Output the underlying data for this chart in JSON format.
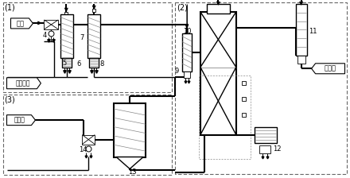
{
  "bg_color": "#ffffff",
  "line_color": "#000000",
  "panel1_label": "(1)",
  "panel2_label": "(2)",
  "panel3_label": "(3)",
  "label_weigi": "尾气",
  "label_youji": "有机溶剂",
  "label_fuchanpin": "副产品",
  "label_fhuaqi": "氟化氢",
  "num4": "4",
  "num5": "5",
  "num6": "6",
  "num7": "7",
  "num8": "8",
  "num9": "9",
  "num10": "10",
  "num11": "11",
  "num12": "12",
  "num13": "13",
  "num14": "14"
}
